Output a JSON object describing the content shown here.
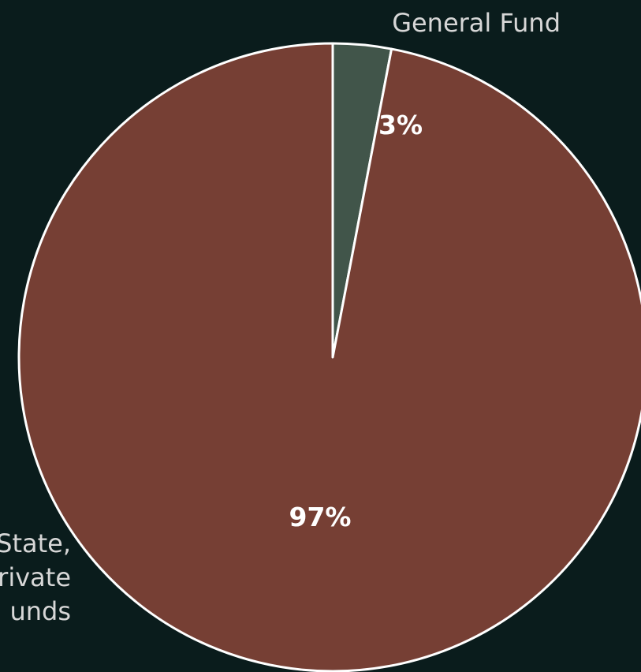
{
  "chart_data": {
    "type": "pie",
    "title": "",
    "slices": [
      {
        "label_lines": [
          "General Fund"
        ],
        "value": 3,
        "value_label": "3%",
        "color": "#41554a"
      },
      {
        "label_lines": [
          "State,",
          "rivate",
          "unds"
        ],
        "value": 97,
        "value_label": "97%",
        "color": "#763f34"
      }
    ],
    "start_angle_deg": 0,
    "direction": "clockwise",
    "legend": "none"
  },
  "colors": {
    "background": "#0a1c1c",
    "slice_border": "#ffffff",
    "value_label": "#ffffff",
    "category_label": "#d7d7d7"
  }
}
